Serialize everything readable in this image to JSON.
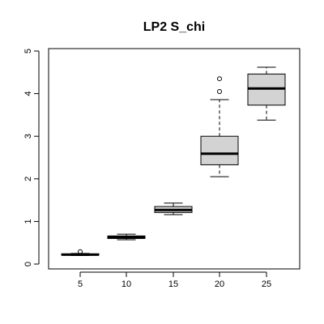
{
  "chart_data": {
    "type": "boxplot",
    "title": "LP2 S_chi",
    "xlabel": "",
    "ylabel": "",
    "categories": [
      "5",
      "10",
      "15",
      "20",
      "25"
    ],
    "boxes": [
      {
        "category": "5",
        "min": 0.2,
        "q1": 0.21,
        "median": 0.22,
        "q3": 0.24,
        "max": 0.25,
        "outliers": [
          0.29
        ]
      },
      {
        "category": "10",
        "min": 0.57,
        "q1": 0.6,
        "median": 0.63,
        "q3": 0.66,
        "max": 0.7,
        "outliers": []
      },
      {
        "category": "15",
        "min": 1.16,
        "q1": 1.21,
        "median": 1.27,
        "q3": 1.35,
        "max": 1.43,
        "outliers": []
      },
      {
        "category": "20",
        "min": 2.05,
        "q1": 2.33,
        "median": 2.59,
        "q3": 3.0,
        "max": 3.86,
        "outliers": [
          4.05,
          4.35
        ]
      },
      {
        "category": "25",
        "min": 3.38,
        "q1": 3.73,
        "median": 4.12,
        "q3": 4.46,
        "max": 4.62,
        "outliers": []
      }
    ],
    "ylim": [
      0,
      5
    ],
    "yticks": [
      "0",
      "1",
      "2",
      "3",
      "4",
      "5"
    ],
    "box_fill": "#d3d3d3",
    "grid": false,
    "legend": "none"
  }
}
